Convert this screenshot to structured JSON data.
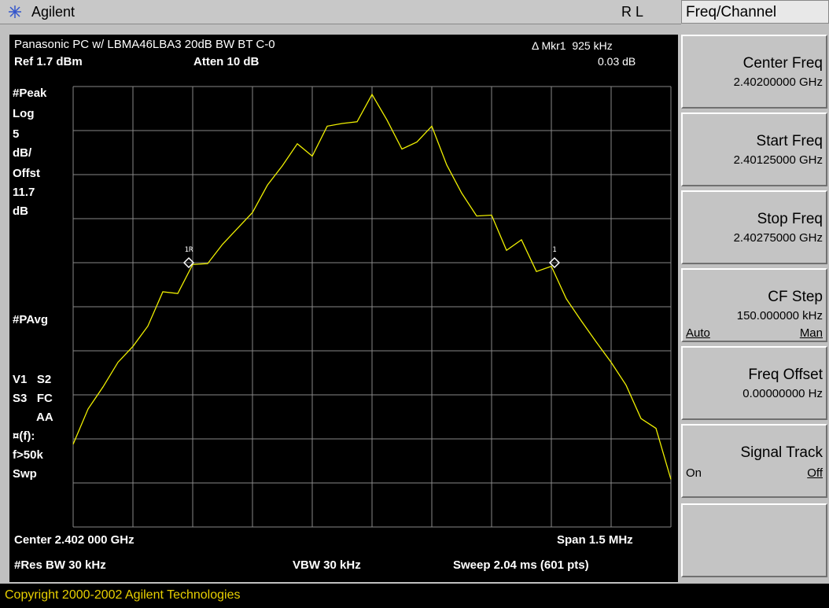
{
  "header": {
    "brand": "Agilent",
    "status": "R L",
    "menu_title": "Freq/Channel"
  },
  "screen": {
    "title": "Panasonic PC w/ LBMA46LBA3 20dB BW BT C-0",
    "marker_readout": "Δ Mkr1  925 kHz",
    "marker_delta": "0.03 dB",
    "ref": "Ref 1.7 dBm",
    "atten": "Atten 10 dB",
    "left_labels": [
      "#Peak",
      "Log",
      "5",
      "dB/",
      "Offst",
      "11.7",
      "dB"
    ],
    "avg_label": "#PAvg",
    "status_labels": [
      "V1   S2",
      "S3   FC",
      "AA",
      "¤(f):",
      "f>50k",
      "Swp"
    ],
    "marker_labels": [
      "1R",
      "1"
    ],
    "center": "Center 2.402 000 GHz",
    "span": "Span 1.5 MHz",
    "rbw": "#Res BW 30 kHz",
    "vbw": "VBW 30 kHz",
    "sweep": "Sweep 2.04 ms (601 pts)",
    "trace": {
      "ylim": [
        -48.3,
        1.7
      ],
      "values": [
        -38.9,
        -34.9,
        -32.4,
        -29.6,
        -27.8,
        -25.5,
        -21.6,
        -21.8,
        -18.5,
        -18.4,
        -16.2,
        -14.4,
        -12.6,
        -9.5,
        -7.3,
        -4.8,
        -6.2,
        -2.8,
        -2.5,
        -2.3,
        0.8,
        -2.1,
        -5.4,
        -4.6,
        -2.8,
        -7.2,
        -10.4,
        -13.0,
        -12.9,
        -16.9,
        -15.7,
        -19.3,
        -18.7,
        -22.4,
        -24.9,
        -27.3,
        -29.6,
        -32.2,
        -36.0,
        -37.1,
        -42.9
      ]
    }
  },
  "softkeys": [
    {
      "label": "Center Freq",
      "value": "2.40200000 GHz"
    },
    {
      "label": "Start Freq",
      "value": "2.40125000 GHz"
    },
    {
      "label": "Stop Freq",
      "value": "2.40275000 GHz"
    },
    {
      "label": "CF Step",
      "value": "150.000000 kHz",
      "left": "Auto",
      "right": "Man"
    },
    {
      "label": "Freq Offset",
      "value": "0.00000000  Hz"
    },
    {
      "label": "Signal Track",
      "left": "On",
      "right": "Off"
    }
  ],
  "footer": {
    "copyright": "Copyright 2000-2002 Agilent Technologies"
  }
}
